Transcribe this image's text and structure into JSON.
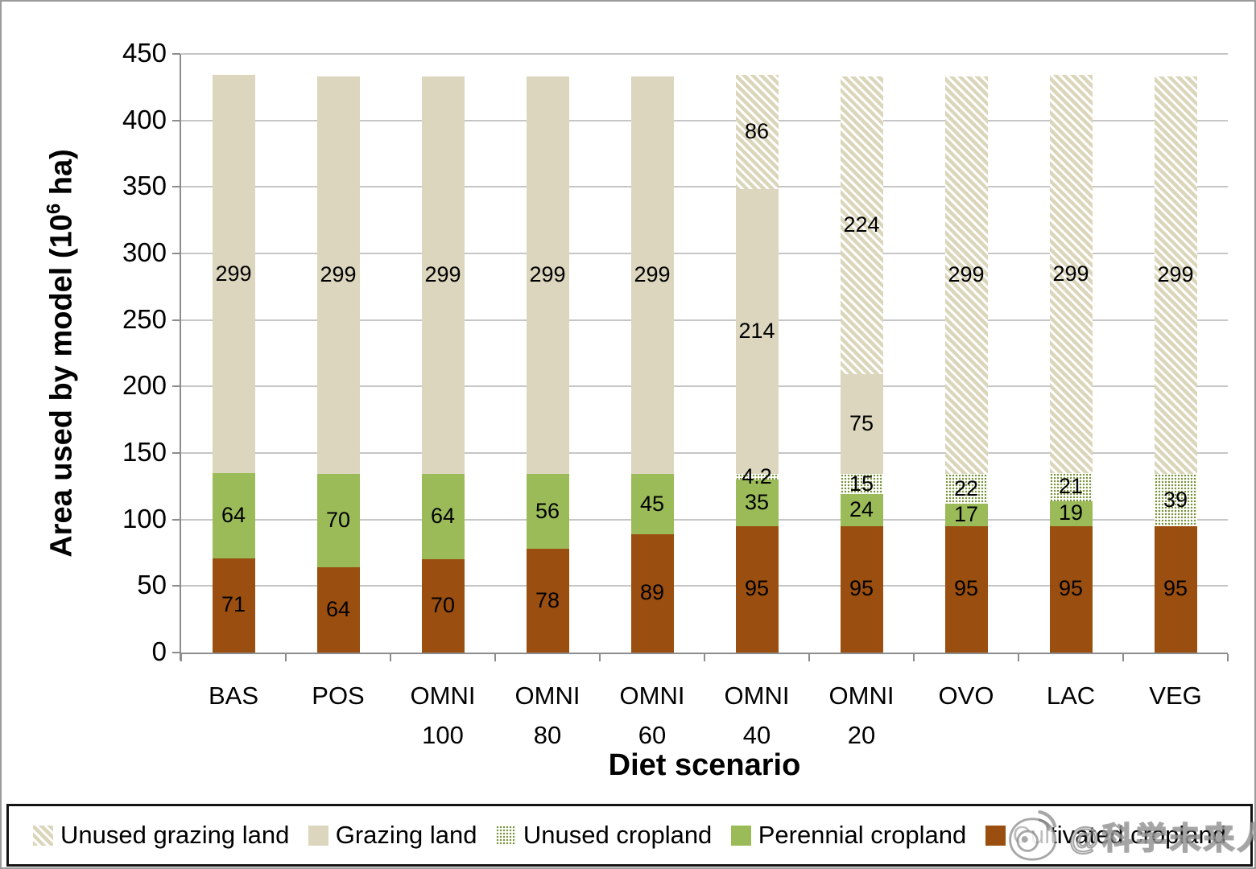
{
  "chart_data": {
    "type": "bar",
    "stacked": true,
    "xlabel": "Diet scenario",
    "ylabel": "Area used by model (10^6 ha)",
    "ylabel_parts": {
      "prefix": "Area used by model (10",
      "superscript": "6",
      "suffix": " ha)"
    },
    "ylim": [
      0,
      450
    ],
    "yticks": [
      0,
      50,
      100,
      150,
      200,
      250,
      300,
      350,
      400,
      450
    ],
    "grid": true,
    "legend_position": "bottom",
    "categories": [
      "BAS",
      "POS",
      "OMNI 100",
      "OMNI 80",
      "OMNI 60",
      "OMNI 40",
      "OMNI 20",
      "OVO",
      "LAC",
      "VEG"
    ],
    "category_label_lines": [
      [
        "BAS"
      ],
      [
        "POS"
      ],
      [
        "OMNI",
        "100"
      ],
      [
        "OMNI",
        "80"
      ],
      [
        "OMNI",
        "60"
      ],
      [
        "OMNI",
        "40"
      ],
      [
        "OMNI",
        "20"
      ],
      [
        "OVO"
      ],
      [
        "LAC"
      ],
      [
        "VEG"
      ]
    ],
    "series": [
      {
        "name": "Cultivated cropland",
        "pattern": "solid",
        "color": "#9a4e0f",
        "values": [
          71,
          64,
          70,
          78,
          89,
          95,
          95,
          95,
          95,
          95
        ]
      },
      {
        "name": "Perennial cropland",
        "pattern": "solid",
        "color": "#9bbb59",
        "values": [
          64,
          70,
          64,
          56,
          45,
          35,
          24,
          17,
          19,
          0
        ]
      },
      {
        "name": "Unused cropland",
        "pattern": "dots",
        "color": "#7a923d",
        "values": [
          0,
          0,
          0,
          0,
          0,
          4.2,
          15,
          22,
          21,
          39
        ]
      },
      {
        "name": "Grazing land",
        "pattern": "solid",
        "color": "#dcd6be",
        "values": [
          299,
          299,
          299,
          299,
          299,
          214,
          75,
          0,
          0,
          0
        ]
      },
      {
        "name": "Unused grazing land",
        "pattern": "hatch",
        "color": "#dbd5ba",
        "values": [
          0,
          0,
          0,
          0,
          0,
          86,
          224,
          299,
          299,
          299
        ]
      }
    ],
    "legend_order": [
      "Unused grazing land",
      "Grazing land",
      "Unused cropland",
      "Perennial cropland",
      "Cultivated cropland"
    ]
  },
  "colors": {
    "cultivated_cropland": "#9a4e0f",
    "perennial_cropland": "#9bbb59",
    "unused_cropland_dots": "#7a923d",
    "grazing_land": "#dcd6be",
    "unused_grazing_hatch": "#dbd5ba",
    "gridline": "#c6c6c6",
    "axis": "#8c8c8c",
    "text": "#000000"
  },
  "watermark": {
    "logo": "weibo-eye-logo",
    "text": "@科学未来人"
  }
}
